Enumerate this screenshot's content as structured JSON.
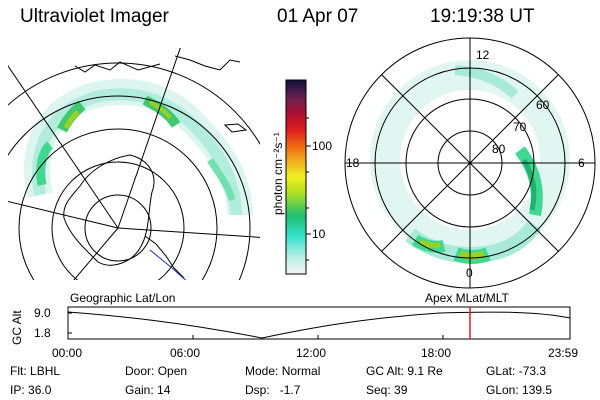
{
  "header": {
    "title": "Ultraviolet Imager",
    "date": "01 Apr 07",
    "time": "19:19:38 UT"
  },
  "left_panel_label": "Geographic Lat/Lon",
  "right_panel": {
    "label": "Apex MLat/MLT",
    "lat_labels": [
      "60",
      "70",
      "80"
    ],
    "mlt_labels": {
      "top": "12",
      "left": "18",
      "right": "6",
      "bottom": "0"
    }
  },
  "colorbar": {
    "unit": "photon cm⁻²s⁻¹",
    "ticks": [
      "100",
      "10"
    ]
  },
  "altitude_plot": {
    "ylabel": "GC Alt",
    "y_ticks": [
      "9.0",
      "1.8"
    ],
    "x_ticks": [
      "00:00",
      "06:00",
      "12:00",
      "18:00",
      "23:59"
    ],
    "current_time_marker": "19:19:38",
    "marker_color": "#e02020"
  },
  "status": {
    "row1": [
      {
        "k": "Flt:",
        "v": "LBHL"
      },
      {
        "k": "Door:",
        "v": "Open"
      },
      {
        "k": "Mode:",
        "v": "Normal"
      },
      {
        "k": "GC Alt:",
        "v": "9.1 Re"
      },
      {
        "k": "GLat:",
        "v": "-73.3"
      }
    ],
    "row2": [
      {
        "k": "IP:",
        "v": "36.0"
      },
      {
        "k": "Gain:",
        "v": "14"
      },
      {
        "k": "Dsp:",
        "v": "-1.7"
      },
      {
        "k": "Seq:",
        "v": "39"
      },
      {
        "k": "GLon:",
        "v": "139.5"
      }
    ]
  },
  "colors": {
    "aurora_low": "#bfeee0",
    "aurora_mid": "#40d890",
    "aurora_high": "#9ad020"
  }
}
